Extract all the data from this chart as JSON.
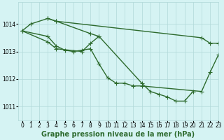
{
  "background_color": "#d5f3f3",
  "grid_color": "#b0d8d8",
  "line_color": "#2d6a2d",
  "xlim": [
    -0.5,
    23
  ],
  "ylim": [
    1010.5,
    1014.8
  ],
  "yticks": [
    1011,
    1012,
    1013,
    1014
  ],
  "xticks": [
    0,
    1,
    2,
    3,
    4,
    5,
    6,
    7,
    8,
    9,
    10,
    11,
    12,
    13,
    14,
    15,
    16,
    17,
    18,
    19,
    20,
    21,
    22,
    23
  ],
  "xlabel": "Graphe pression niveau de la mer (hPa)",
  "series": [
    {
      "x": [
        0,
        1,
        3,
        4,
        21,
        22,
        23
      ],
      "y": [
        1013.75,
        1014.0,
        1014.2,
        1014.1,
        1013.5,
        1013.3,
        1013.3
      ]
    },
    {
      "x": [
        0,
        3,
        4,
        5,
        6,
        7,
        8,
        9,
        10,
        11,
        12,
        13,
        14,
        21,
        22,
        23
      ],
      "y": [
        1013.75,
        1013.55,
        1013.2,
        1013.05,
        1013.0,
        1013.05,
        1013.1,
        1012.55,
        1012.05,
        1011.85,
        1011.85,
        1011.75,
        1011.75,
        1011.55,
        1012.25,
        1012.9
      ]
    },
    {
      "x": [
        0,
        3,
        4,
        7,
        8,
        9,
        14,
        15,
        16,
        17,
        18,
        19,
        20
      ],
      "y": [
        1013.75,
        1013.35,
        1013.1,
        1013.0,
        1013.3,
        1013.55,
        1011.85,
        1011.55,
        1011.45,
        1011.35,
        1011.2,
        1011.2,
        1011.55
      ]
    },
    {
      "x": [
        3,
        4,
        8,
        9
      ],
      "y": [
        1014.2,
        1014.1,
        1013.65,
        1013.55
      ]
    }
  ],
  "marker": "+",
  "marker_size": 4,
  "line_width": 1.0,
  "xlabel_fontsize": 7,
  "tick_fontsize": 5.5
}
